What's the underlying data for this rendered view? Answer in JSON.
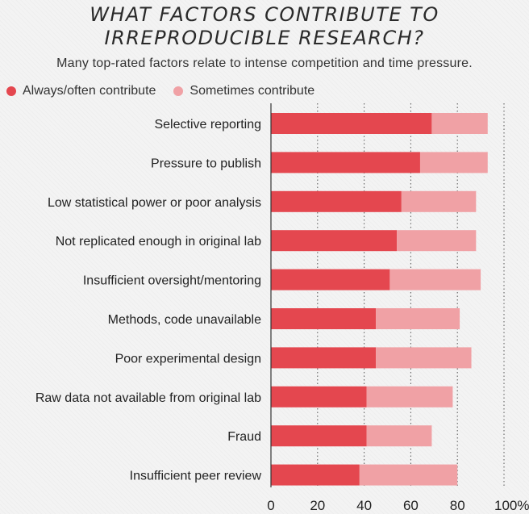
{
  "chart_data": {
    "type": "bar",
    "stacked": true,
    "orientation": "horizontal",
    "title_lines": [
      "WHAT FACTORS CONTRIBUTE TO",
      "IRREPRODUCIBLE RESEARCH?"
    ],
    "subtitle": "Many top-rated factors relate to intense competition and time pressure.",
    "categories": [
      "Selective reporting",
      "Pressure to publish",
      "Low statistical power or poor analysis",
      "Not replicated enough in original lab",
      "Insufficient oversight/mentoring",
      "Methods, code unavailable",
      "Poor experimental design",
      "Raw data not available from original lab",
      "Fraud",
      "Insufficient peer review"
    ],
    "series": [
      {
        "name": "Always/often contribute",
        "color": "#e4474f",
        "values": [
          69,
          64,
          56,
          54,
          51,
          45,
          45,
          41,
          41,
          38
        ]
      },
      {
        "name": "Sometimes contribute",
        "color": "#f0a1a5",
        "values": [
          24,
          29,
          32,
          34,
          39,
          36,
          41,
          37,
          28,
          42
        ]
      }
    ],
    "xlim": [
      0,
      100
    ],
    "xticks": [
      "0",
      "20",
      "40",
      "60",
      "80",
      "100%"
    ],
    "xtick_values": [
      0,
      20,
      40,
      60,
      80,
      100
    ],
    "grid": true,
    "legend_position": "top-left"
  }
}
